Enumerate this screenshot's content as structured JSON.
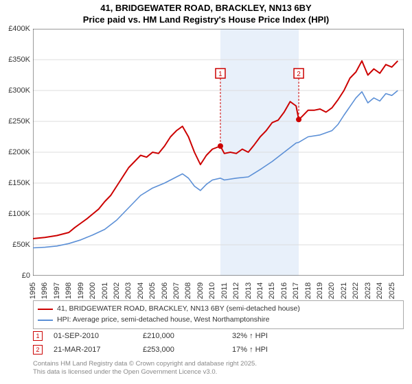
{
  "title": {
    "line1": "41, BRIDGEWATER ROAD, BRACKLEY, NN13 6BY",
    "line2": "Price paid vs. HM Land Registry's House Price Index (HPI)"
  },
  "chart": {
    "type": "line",
    "background_color": "#ffffff",
    "grid_color": "#dddddd",
    "axis_color": "#333333",
    "shade_color": "#e8f0fa",
    "shade_x_start": 2010.67,
    "shade_x_end": 2017.22,
    "xlim": [
      1995,
      2026
    ],
    "ylim": [
      0,
      400000
    ],
    "ytick_step": 50000,
    "y_ticks": [
      "£0",
      "£50K",
      "£100K",
      "£150K",
      "£200K",
      "£250K",
      "£300K",
      "£350K",
      "£400K"
    ],
    "x_ticks": [
      "1995",
      "1996",
      "1997",
      "1998",
      "1999",
      "2000",
      "2001",
      "2002",
      "2003",
      "2004",
      "2005",
      "2006",
      "2007",
      "2008",
      "2009",
      "2010",
      "2011",
      "2012",
      "2013",
      "2014",
      "2015",
      "2016",
      "2017",
      "2018",
      "2019",
      "2020",
      "2021",
      "2022",
      "2023",
      "2024",
      "2025"
    ],
    "series": [
      {
        "name": "price_paid",
        "color": "#cc0000",
        "width": 2,
        "data": [
          [
            1995,
            60000
          ],
          [
            1996,
            62000
          ],
          [
            1997,
            65000
          ],
          [
            1998,
            70000
          ],
          [
            1998.5,
            78000
          ],
          [
            1999,
            85000
          ],
          [
            1999.5,
            92000
          ],
          [
            2000,
            100000
          ],
          [
            2000.5,
            108000
          ],
          [
            2001,
            120000
          ],
          [
            2001.5,
            130000
          ],
          [
            2002,
            145000
          ],
          [
            2002.5,
            160000
          ],
          [
            2003,
            175000
          ],
          [
            2003.5,
            185000
          ],
          [
            2004,
            195000
          ],
          [
            2004.5,
            192000
          ],
          [
            2005,
            200000
          ],
          [
            2005.5,
            198000
          ],
          [
            2006,
            210000
          ],
          [
            2006.5,
            225000
          ],
          [
            2007,
            235000
          ],
          [
            2007.5,
            242000
          ],
          [
            2008,
            225000
          ],
          [
            2008.5,
            200000
          ],
          [
            2009,
            180000
          ],
          [
            2009.5,
            195000
          ],
          [
            2010,
            205000
          ],
          [
            2010.67,
            210000
          ],
          [
            2011,
            198000
          ],
          [
            2011.5,
            200000
          ],
          [
            2012,
            198000
          ],
          [
            2012.5,
            205000
          ],
          [
            2013,
            200000
          ],
          [
            2013.5,
            212000
          ],
          [
            2014,
            225000
          ],
          [
            2014.5,
            235000
          ],
          [
            2015,
            248000
          ],
          [
            2015.5,
            252000
          ],
          [
            2016,
            265000
          ],
          [
            2016.5,
            282000
          ],
          [
            2017,
            275000
          ],
          [
            2017.22,
            253000
          ],
          [
            2017.5,
            258000
          ],
          [
            2018,
            268000
          ],
          [
            2018.5,
            268000
          ],
          [
            2019,
            270000
          ],
          [
            2019.5,
            265000
          ],
          [
            2020,
            272000
          ],
          [
            2020.5,
            285000
          ],
          [
            2021,
            300000
          ],
          [
            2021.5,
            320000
          ],
          [
            2022,
            330000
          ],
          [
            2022.5,
            348000
          ],
          [
            2023,
            325000
          ],
          [
            2023.5,
            335000
          ],
          [
            2024,
            328000
          ],
          [
            2024.5,
            342000
          ],
          [
            2025,
            338000
          ],
          [
            2025.5,
            348000
          ]
        ]
      },
      {
        "name": "hpi",
        "color": "#5b8fd6",
        "width": 1.6,
        "data": [
          [
            1995,
            45000
          ],
          [
            1996,
            46000
          ],
          [
            1997,
            48000
          ],
          [
            1998,
            52000
          ],
          [
            1999,
            58000
          ],
          [
            2000,
            66000
          ],
          [
            2001,
            75000
          ],
          [
            2002,
            90000
          ],
          [
            2003,
            110000
          ],
          [
            2004,
            130000
          ],
          [
            2005,
            142000
          ],
          [
            2006,
            150000
          ],
          [
            2007,
            160000
          ],
          [
            2007.5,
            165000
          ],
          [
            2008,
            158000
          ],
          [
            2008.5,
            145000
          ],
          [
            2009,
            138000
          ],
          [
            2009.5,
            148000
          ],
          [
            2010,
            155000
          ],
          [
            2010.67,
            158000
          ],
          [
            2011,
            155000
          ],
          [
            2012,
            158000
          ],
          [
            2013,
            160000
          ],
          [
            2014,
            172000
          ],
          [
            2015,
            185000
          ],
          [
            2016,
            200000
          ],
          [
            2017,
            215000
          ],
          [
            2017.22,
            216000
          ],
          [
            2018,
            225000
          ],
          [
            2019,
            228000
          ],
          [
            2020,
            235000
          ],
          [
            2020.5,
            245000
          ],
          [
            2021,
            260000
          ],
          [
            2022,
            288000
          ],
          [
            2022.5,
            298000
          ],
          [
            2023,
            280000
          ],
          [
            2023.5,
            288000
          ],
          [
            2024,
            283000
          ],
          [
            2024.5,
            295000
          ],
          [
            2025,
            292000
          ],
          [
            2025.5,
            300000
          ]
        ]
      }
    ],
    "markers": [
      {
        "label": "1",
        "x": 2010.67,
        "y": 210000,
        "box_top": 58
      },
      {
        "label": "2",
        "x": 2017.22,
        "y": 253000,
        "box_top": 58
      }
    ],
    "sale_dot_color": "#cc0000",
    "marker_box_border": "#cc0000",
    "label_fontsize": 11
  },
  "legend": {
    "items": [
      {
        "color": "#cc0000",
        "label": "41, BRIDGEWATER ROAD, BRACKLEY, NN13 6BY (semi-detached house)"
      },
      {
        "color": "#5b8fd6",
        "label": "HPI: Average price, semi-detached house, West Northamptonshire"
      }
    ]
  },
  "sales": [
    {
      "marker": "1",
      "date": "01-SEP-2010",
      "price": "£210,000",
      "diff": "32% ↑ HPI"
    },
    {
      "marker": "2",
      "date": "21-MAR-2017",
      "price": "£253,000",
      "diff": "17% ↑ HPI"
    }
  ],
  "footer": {
    "line1": "Contains HM Land Registry data © Crown copyright and database right 2025.",
    "line2": "This data is licensed under the Open Government Licence v3.0."
  }
}
